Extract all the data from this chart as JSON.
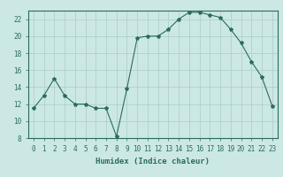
{
  "x": [
    0,
    1,
    2,
    3,
    4,
    5,
    6,
    7,
    8,
    9,
    10,
    11,
    12,
    13,
    14,
    15,
    16,
    17,
    18,
    19,
    20,
    21,
    22,
    23
  ],
  "y": [
    11.5,
    13,
    15,
    13,
    12,
    12,
    11.5,
    11.5,
    8.2,
    13.8,
    19.8,
    20,
    20,
    20.8,
    22,
    22.8,
    22.8,
    22.5,
    22.2,
    20.8,
    19.2,
    17,
    15.2,
    11.8
  ],
  "line_color": "#2a6b5f",
  "marker": "*",
  "marker_size": 3,
  "bg_color": "#cce8e4",
  "grid_color": "#aaccca",
  "xlabel": "Humidex (Indice chaleur)",
  "ylim": [
    8,
    23
  ],
  "xlim": [
    -0.5,
    23.5
  ],
  "yticks": [
    8,
    10,
    12,
    14,
    16,
    18,
    20,
    22
  ],
  "xticks": [
    0,
    1,
    2,
    3,
    4,
    5,
    6,
    7,
    8,
    9,
    10,
    11,
    12,
    13,
    14,
    15,
    16,
    17,
    18,
    19,
    20,
    21,
    22,
    23
  ],
  "label_fontsize": 6.5,
  "tick_fontsize": 5.5
}
